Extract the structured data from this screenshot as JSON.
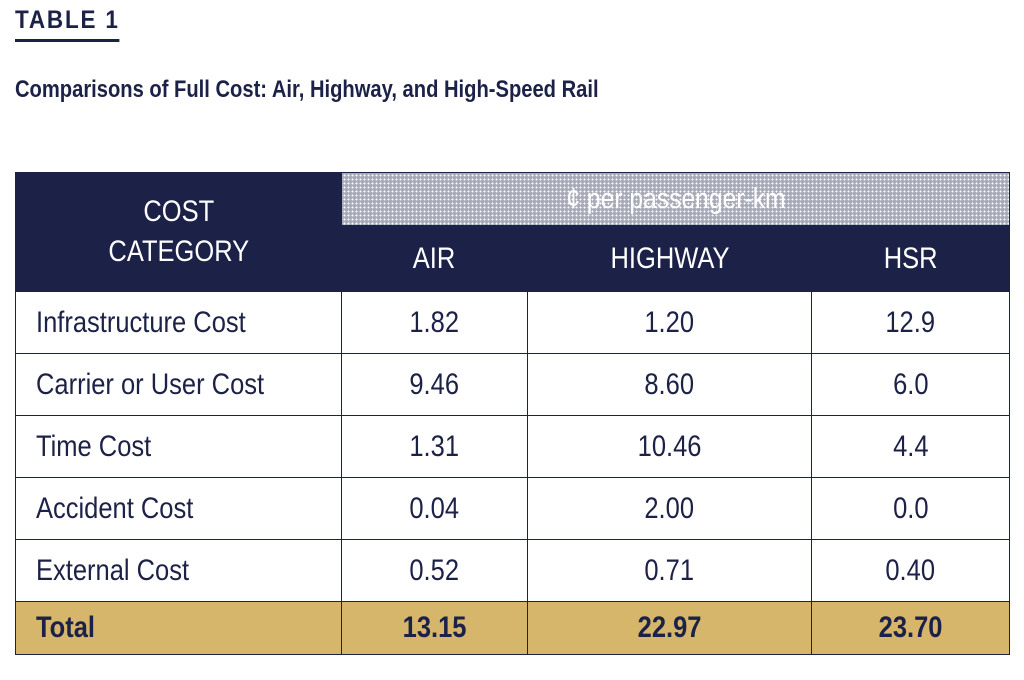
{
  "table_label": "TABLE 1",
  "caption": "Comparisons of Full Cost: Air, Highway, and High-Speed Rail",
  "header": {
    "category_line1": "COST",
    "category_line2": "CATEGORY",
    "unit": "¢ per passenger-km",
    "columns": [
      "AIR",
      "HIGHWAY",
      "HSR"
    ]
  },
  "rows": [
    {
      "category": "Infrastructure Cost",
      "values": [
        "1.82",
        "1.20",
        "12.9"
      ]
    },
    {
      "category": "Carrier or User Cost",
      "values": [
        "9.46",
        "8.60",
        "6.0"
      ]
    },
    {
      "category": "Time Cost",
      "values": [
        "1.31",
        "10.46",
        "4.4"
      ]
    },
    {
      "category": "Accident Cost",
      "values": [
        "0.04",
        "2.00",
        "0.0"
      ]
    },
    {
      "category": "External Cost",
      "values": [
        "0.52",
        "0.71",
        "0.40"
      ]
    }
  ],
  "total": {
    "category": "Total",
    "values": [
      "13.15",
      "22.97",
      "23.70"
    ]
  },
  "colors": {
    "navy": "#1c2147",
    "header_tint": "#a8abb8",
    "total_gold": "#d6b66a"
  }
}
